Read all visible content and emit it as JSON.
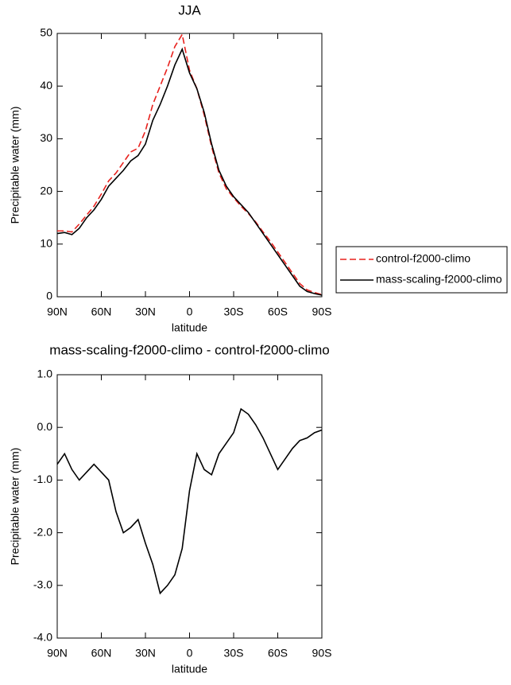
{
  "chart_data": [
    {
      "type": "line",
      "title": "JJA",
      "xlabel": "latitude",
      "ylabel": "Precipitable water (mm)",
      "x": [
        90,
        85,
        80,
        75,
        70,
        65,
        60,
        55,
        50,
        45,
        40,
        35,
        30,
        25,
        20,
        15,
        10,
        5,
        0,
        -5,
        -10,
        -15,
        -20,
        -25,
        -30,
        -35,
        -40,
        -45,
        -50,
        -55,
        -60,
        -65,
        -70,
        -75,
        -80,
        -85,
        -90
      ],
      "xlim": [
        90,
        -90
      ],
      "xticks": [
        {
          "value": 90,
          "label": "90N"
        },
        {
          "value": 60,
          "label": "60N"
        },
        {
          "value": 30,
          "label": "30N"
        },
        0,
        {
          "value": -30,
          "label": "30S"
        },
        {
          "value": -60,
          "label": "60S"
        },
        {
          "value": -90,
          "label": "90S"
        }
      ],
      "ylim": [
        0,
        50
      ],
      "yticks": [
        0,
        10,
        20,
        30,
        40,
        50
      ],
      "legend": "right",
      "series": [
        {
          "name": "control-f2000-climo",
          "color": "#e8211d",
          "linestyle": "dashed",
          "values": [
            12.5,
            12.5,
            12.3,
            13.8,
            15.5,
            17.2,
            19.5,
            22,
            23.5,
            25.5,
            27.5,
            28.2,
            31.5,
            36.5,
            40,
            43.5,
            47.5,
            49.8,
            43,
            39.5,
            34.5,
            28.5,
            23.5,
            20.5,
            18.8,
            17.2,
            15.8,
            14.2,
            12.3,
            10.5,
            8.5,
            6.5,
            4.5,
            2.5,
            1.3,
            0.8,
            0.4
          ]
        },
        {
          "name": "mass-scaling-f2000-climo",
          "color": "#000000",
          "linestyle": "solid",
          "values": [
            12,
            12.2,
            11.8,
            13,
            15,
            16.5,
            18.5,
            21,
            22.5,
            24,
            25.8,
            26.8,
            29,
            33.5,
            36.5,
            40,
            44,
            47,
            42.5,
            39.5,
            35,
            29,
            24,
            21,
            19,
            17.5,
            16,
            14,
            12,
            10,
            8,
            6,
            4,
            2,
            1,
            0.6,
            0.3
          ]
        }
      ]
    },
    {
      "type": "line",
      "title": "mass-scaling-f2000-climo - control-f2000-climo",
      "xlabel": "latitude",
      "ylabel": "Precipitable water (mm)",
      "x": [
        90,
        85,
        80,
        75,
        70,
        65,
        60,
        55,
        50,
        45,
        40,
        35,
        30,
        25,
        20,
        15,
        10,
        5,
        0,
        -5,
        -10,
        -15,
        -20,
        -25,
        -30,
        -35,
        -40,
        -45,
        -50,
        -55,
        -60,
        -65,
        -70,
        -75,
        -80,
        -85,
        -90
      ],
      "xlim": [
        90,
        -90
      ],
      "xticks": [
        {
          "value": 90,
          "label": "90N"
        },
        {
          "value": 60,
          "label": "60N"
        },
        {
          "value": 30,
          "label": "30N"
        },
        0,
        {
          "value": -30,
          "label": "30S"
        },
        {
          "value": -60,
          "label": "60S"
        },
        {
          "value": -90,
          "label": "90S"
        }
      ],
      "ylim": [
        -4,
        1
      ],
      "yticks": [
        {
          "value": -4,
          "label": "-4.0"
        },
        {
          "value": -3,
          "label": "-3.0"
        },
        {
          "value": -2,
          "label": "-2.0"
        },
        {
          "value": -1,
          "label": "-1.0"
        },
        {
          "value": 0,
          "label": "0.0"
        },
        {
          "value": 1,
          "label": "1.0"
        }
      ],
      "series": [
        {
          "color": "#000000",
          "linestyle": "solid",
          "values": [
            -0.7,
            -0.5,
            -0.8,
            -1.0,
            -0.85,
            -0.7,
            -0.85,
            -1.0,
            -1.6,
            -2.0,
            -1.9,
            -1.75,
            -2.2,
            -2.6,
            -3.15,
            -3.0,
            -2.8,
            -2.3,
            -1.2,
            -0.5,
            -0.8,
            -0.9,
            -0.5,
            -0.3,
            -0.1,
            0.35,
            0.25,
            0.05,
            -0.2,
            -0.5,
            -0.8,
            -0.6,
            -0.4,
            -0.25,
            -0.2,
            -0.1,
            -0.05
          ]
        }
      ]
    }
  ]
}
